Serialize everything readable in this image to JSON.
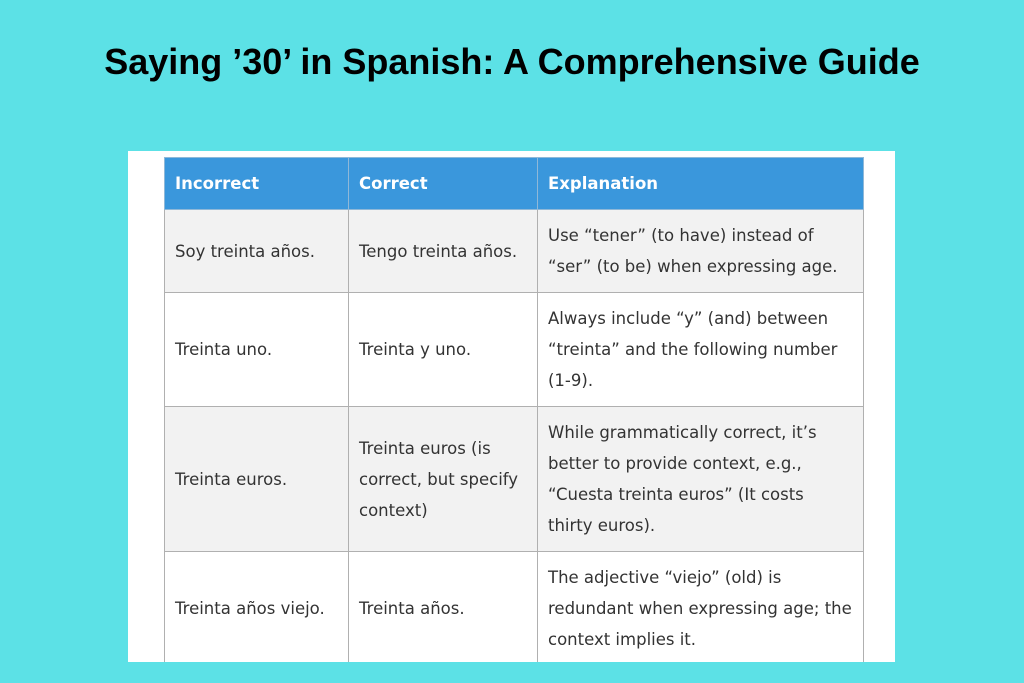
{
  "title": "Saying ’30’ in Spanish: A Comprehensive Guide",
  "table": {
    "headers": [
      "Incorrect",
      "Correct",
      "Explanation"
    ],
    "rows": [
      [
        "Soy treinta años.",
        "Tengo treinta años.",
        "Use “tener” (to have) instead of “ser” (to be) when expressing age."
      ],
      [
        "Treinta uno.",
        "Treinta y uno.",
        "Always include “y” (and) between “treinta” and the following number (1-9)."
      ],
      [
        "Treinta euros.",
        "Treinta euros (is correct, but specify context)",
        "While grammatically correct, it’s better to provide context, e.g., “Cuesta treinta euros” (It costs thirty euros)."
      ],
      [
        "Treinta años viejo.",
        "Treinta años.",
        "The adjective “viejo” (old) is redundant when expressing age; the context implies it."
      ]
    ]
  },
  "colors": {
    "background": "#5ce1e6",
    "header": "#3a97dc"
  }
}
